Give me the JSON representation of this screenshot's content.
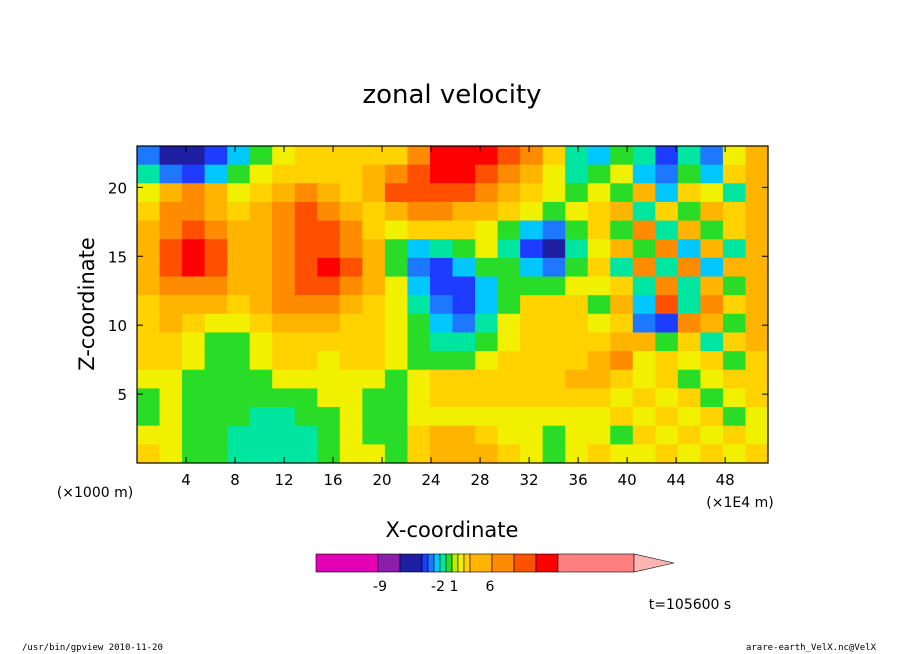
{
  "chart_data": {
    "type": "heatmap",
    "title": "zonal velocity",
    "xlabel": "X-coordinate",
    "ylabel": "Z-coordinate",
    "x_unit_label": "(×1E4 m)",
    "y_unit_label": "(×1000 m)",
    "xlim": [
      0,
      51.5
    ],
    "ylim": [
      0,
      23
    ],
    "x_ticks": [
      4,
      8,
      12,
      16,
      20,
      24,
      28,
      32,
      36,
      40,
      44,
      48
    ],
    "y_ticks": [
      5,
      10,
      15,
      20
    ],
    "colorbar": {
      "colors": [
        "#e600b4",
        "#8c1eaa",
        "#1e1ea0",
        "#1e3cff",
        "#1e78ff",
        "#00c8ff",
        "#00e6a0",
        "#28dc28",
        "#b4f000",
        "#f0f000",
        "#ffd200",
        "#ffb400",
        "#ff8c00",
        "#ff5000",
        "#ff0000",
        "#ff8080",
        "#ffb4b4"
      ],
      "tick_labels": [
        "-9",
        "-2",
        "1",
        "6"
      ]
    },
    "field_values": [
      [
        -4,
        -6,
        -7,
        -5,
        -3,
        -1,
        0,
        1,
        1,
        1,
        1,
        1,
        3,
        5,
        6,
        5,
        4,
        3,
        1,
        -2,
        -3,
        -1,
        -2,
        -5,
        -2,
        -4,
        0,
        2
      ],
      [
        -2,
        -4,
        -5,
        -3,
        -1,
        0,
        1,
        1,
        1,
        1,
        2,
        3,
        4,
        5,
        5,
        4,
        3,
        2,
        0,
        -2,
        -1,
        0,
        -3,
        -4,
        -1,
        -3,
        1,
        2
      ],
      [
        0,
        2,
        3,
        2,
        0,
        1,
        2,
        3,
        2,
        1,
        2,
        4,
        4,
        4,
        4,
        3,
        2,
        1,
        0,
        -1,
        0,
        -1,
        2,
        -3,
        1,
        0,
        -2,
        2
      ],
      [
        1,
        3,
        3,
        2,
        1,
        2,
        3,
        4,
        3,
        2,
        1,
        2,
        3,
        3,
        2,
        2,
        1,
        0,
        -1,
        0,
        1,
        2,
        -2,
        1,
        -1,
        2,
        1,
        2
      ],
      [
        2,
        3,
        4,
        3,
        2,
        2,
        3,
        4,
        4,
        3,
        1,
        0,
        1,
        1,
        1,
        0,
        -1,
        -3,
        -4,
        -1,
        1,
        -1,
        3,
        -2,
        2,
        -1,
        1,
        2
      ],
      [
        2,
        4,
        5,
        4,
        2,
        2,
        3,
        4,
        4,
        3,
        2,
        -1,
        -3,
        -2,
        -1,
        0,
        -2,
        -5,
        -6,
        -2,
        0,
        2,
        -1,
        3,
        -3,
        2,
        -2,
        2
      ],
      [
        2,
        4,
        5,
        4,
        2,
        2,
        3,
        4,
        5,
        4,
        2,
        -1,
        -4,
        -5,
        -3,
        -1,
        -1,
        -3,
        -4,
        -1,
        1,
        -2,
        3,
        -2,
        3,
        -3,
        2,
        2
      ],
      [
        2,
        3,
        3,
        3,
        2,
        2,
        3,
        4,
        4,
        3,
        2,
        0,
        -3,
        -5,
        -5,
        -3,
        -1,
        -1,
        -1,
        0,
        0,
        1,
        -2,
        3,
        -2,
        2,
        -1,
        2
      ],
      [
        1,
        2,
        2,
        2,
        1,
        2,
        3,
        3,
        3,
        2,
        1,
        0,
        -2,
        -4,
        -5,
        -3,
        -1,
        1,
        1,
        1,
        -1,
        2,
        -3,
        4,
        -2,
        3,
        1,
        2
      ],
      [
        1,
        2,
        1,
        0,
        0,
        1,
        2,
        2,
        2,
        1,
        1,
        0,
        -1,
        -3,
        -4,
        -2,
        0,
        1,
        1,
        1,
        0,
        1,
        -4,
        -5,
        3,
        2,
        -1,
        2
      ],
      [
        1,
        1,
        0,
        -1,
        -1,
        0,
        1,
        1,
        1,
        1,
        1,
        0,
        -1,
        -2,
        -2,
        -1,
        0,
        1,
        1,
        1,
        1,
        2,
        2,
        -1,
        1,
        -2,
        1,
        2
      ],
      [
        1,
        1,
        0,
        -1,
        -1,
        0,
        1,
        1,
        0,
        1,
        1,
        0,
        -1,
        -1,
        -1,
        0,
        1,
        1,
        1,
        1,
        2,
        3,
        0,
        1,
        0,
        1,
        -1,
        1
      ],
      [
        0,
        0,
        -1,
        -1,
        -1,
        -1,
        0,
        0,
        0,
        0,
        0,
        -1,
        0,
        1,
        1,
        1,
        1,
        1,
        1,
        2,
        2,
        1,
        0,
        1,
        -1,
        0,
        1,
        1
      ],
      [
        -1,
        0,
        -1,
        -1,
        -1,
        -1,
        -1,
        -1,
        0,
        0,
        -1,
        -1,
        0,
        1,
        1,
        1,
        1,
        1,
        1,
        1,
        1,
        0,
        1,
        0,
        1,
        -1,
        0,
        1
      ],
      [
        -1,
        0,
        -1,
        -1,
        -1,
        -2,
        -2,
        -1,
        -1,
        0,
        -1,
        -1,
        0,
        0,
        0,
        0,
        0,
        0,
        0,
        0,
        0,
        1,
        0,
        1,
        0,
        1,
        -1,
        0
      ],
      [
        0,
        0,
        -1,
        -1,
        -2,
        -2,
        -2,
        -2,
        -1,
        0,
        -1,
        -1,
        1,
        2,
        2,
        1,
        0,
        0,
        -1,
        0,
        0,
        -1,
        1,
        0,
        1,
        0,
        1,
        0
      ],
      [
        1,
        0,
        -1,
        -1,
        -2,
        -2,
        -2,
        -2,
        -1,
        0,
        0,
        -1,
        1,
        2,
        2,
        2,
        1,
        0,
        -1,
        0,
        1,
        0,
        0,
        1,
        0,
        1,
        0,
        1
      ]
    ]
  },
  "annotations": {
    "time_label": "t=105600 s",
    "footer_left": "/usr/bin/gpview   2010-11-20",
    "footer_right": "arare-earth_VelX.nc@VelX"
  }
}
